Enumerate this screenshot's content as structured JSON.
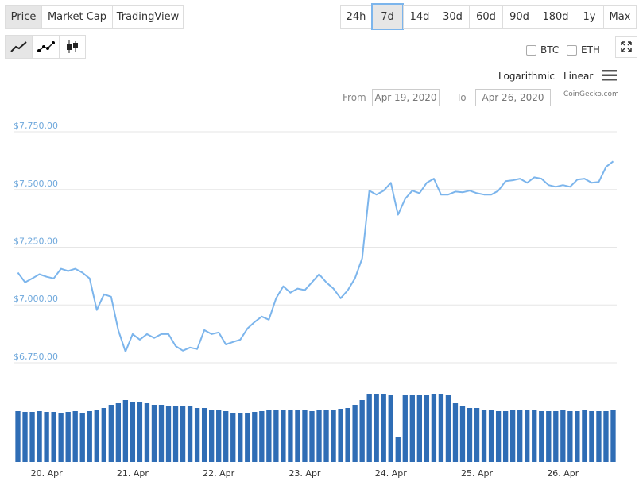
{
  "tabs": [
    "Price",
    "Market Cap",
    "TradingView"
  ],
  "ranges": [
    "24h",
    "7d",
    "14d",
    "30d",
    "60d",
    "90d",
    "180d",
    "1y",
    "Max"
  ],
  "compare": [
    "BTC",
    "ETH"
  ],
  "scales": [
    "Logarithmic",
    "Linear"
  ],
  "range_picker": {
    "from_label": "From",
    "from": "Apr 19, 2020",
    "to_label": "To",
    "to": "Apr 26, 2020"
  },
  "credit": "CoinGecko.com",
  "chart_data": {
    "type": "line",
    "categories": [
      null,
      null,
      null,
      null,
      "20. Apr",
      null,
      null,
      null,
      null,
      null,
      null,
      null,
      null,
      null,
      null,
      null,
      "21. Apr",
      null,
      null,
      null,
      null,
      null,
      null,
      null,
      null,
      null,
      null,
      null,
      "22. Apr",
      null,
      null,
      null,
      null,
      null,
      null,
      null,
      null,
      null,
      null,
      null,
      "23. Apr",
      null,
      null,
      null,
      null,
      null,
      null,
      null,
      null,
      null,
      null,
      null,
      "24. Apr",
      null,
      null,
      null,
      null,
      null,
      null,
      null,
      null,
      null,
      null,
      null,
      "25. Apr",
      null,
      null,
      null,
      null,
      null,
      null,
      null,
      null,
      null,
      null,
      null,
      "26. Apr",
      null,
      null,
      null,
      null,
      null,
      null,
      null
    ],
    "series": [
      {
        "color": "#7cb5ec",
        "values": [
          7140,
          7098,
          7115,
          7133,
          7122,
          7115,
          7157,
          7147,
          7157,
          7140,
          7115,
          6978,
          7046,
          7036,
          6891,
          6798,
          6874,
          6850,
          6874,
          6857,
          6874,
          6874,
          6822,
          6802,
          6816,
          6809,
          6891,
          6874,
          6881,
          6829,
          6840,
          6850,
          6898,
          6926,
          6950,
          6936,
          7029,
          7081,
          7053,
          7071,
          7064,
          7098,
          7133,
          7098,
          7071,
          7029,
          7064,
          7115,
          7202,
          7495,
          7478,
          7495,
          7529,
          7391,
          7460,
          7495,
          7484,
          7529,
          7547,
          7478,
          7478,
          7491,
          7488,
          7495,
          7484,
          7478,
          7478,
          7495,
          7536,
          7540,
          7547,
          7529,
          7553,
          7547,
          7519,
          7512,
          7519,
          7512,
          7543,
          7547,
          7529,
          7533,
          7598,
          7622
        ]
      },
      {
        "type": "bar",
        "axis": "y2",
        "color": "#2f6db5",
        "values": [
          64,
          63,
          63,
          64,
          63,
          63,
          62,
          63,
          64,
          62,
          64,
          66,
          68,
          72,
          74,
          78,
          76,
          76,
          74,
          72,
          72,
          71,
          70,
          70,
          70,
          68,
          68,
          66,
          66,
          64,
          62,
          62,
          62,
          63,
          64,
          66,
          66,
          66,
          66,
          65,
          66,
          64,
          66,
          66,
          66,
          67,
          68,
          72,
          78,
          85,
          86,
          86,
          84,
          32,
          84,
          84,
          84,
          84,
          86,
          86,
          84,
          74,
          70,
          68,
          68,
          66,
          65,
          64,
          64,
          65,
          65,
          66,
          65,
          64,
          64,
          64,
          65,
          64,
          64,
          65,
          64,
          64,
          64,
          65
        ]
      }
    ],
    "ylim": [
      6700,
      7800
    ],
    "yticks": [
      {
        "value": 6750,
        "label": "$6,750.00"
      },
      {
        "value": 7000,
        "label": "$7,000.00"
      },
      {
        "value": 7250,
        "label": "$7,250.00"
      },
      {
        "value": 7500,
        "label": "$7,500.00"
      },
      {
        "value": 7750,
        "label": "$7,750.00"
      }
    ],
    "y2lim": [
      0,
      100
    ],
    "grid": true
  }
}
